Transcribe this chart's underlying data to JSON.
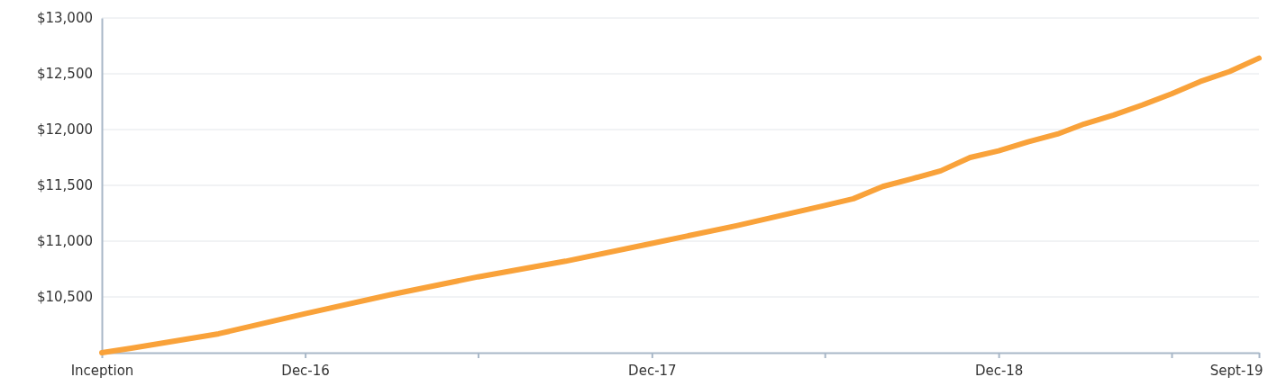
{
  "chart_data": {
    "type": "line",
    "x": [
      "2016-05",
      "2016-06",
      "2016-09",
      "2016-12",
      "2017-03",
      "2017-06",
      "2017-09",
      "2017-12",
      "2018-03",
      "2018-06",
      "2018-07",
      "2018-08",
      "2018-09",
      "2018-10",
      "2018-11",
      "2018-12",
      "2019-01",
      "2019-02",
      "2019-03",
      "2019-04",
      "2019-05",
      "2019-06",
      "2019-07",
      "2019-08",
      "2019-09"
    ],
    "series": [
      {
        "color": "#f9a23a",
        "values": [
          10000,
          10040,
          10170,
          10350,
          10520,
          10680,
          10820,
          10980,
          11140,
          11320,
          11380,
          11490,
          11560,
          11630,
          11750,
          11810,
          11890,
          11960,
          12050,
          12130,
          12220,
          12320,
          12430,
          12520,
          12640
        ]
      }
    ],
    "xlim": [
      "2016-05",
      "2019-09"
    ],
    "xticks": [
      {
        "value": "2016-05",
        "label": "Inception"
      },
      {
        "value": "2016-12",
        "label": "Dec-16"
      },
      {
        "value": "2017-06",
        "label": null
      },
      {
        "value": "2017-12",
        "label": "Dec-17"
      },
      {
        "value": "2018-06",
        "label": null
      },
      {
        "value": "2018-12",
        "label": "Dec-18"
      },
      {
        "value": "2019-06",
        "label": null
      },
      {
        "value": "2019-09",
        "label": "Sept-19"
      }
    ],
    "ylim": [
      10000,
      13000
    ],
    "yticks": [
      {
        "value": 10500,
        "label": "$10,500"
      },
      {
        "value": 11000,
        "label": "$11,000"
      },
      {
        "value": 11500,
        "label": "$11,500"
      },
      {
        "value": 12000,
        "label": "$12,000"
      },
      {
        "value": 12500,
        "label": "$12,500"
      },
      {
        "value": 13000,
        "label": "$13,000"
      }
    ],
    "grid": "y",
    "marker": "none",
    "line_style": "solid"
  }
}
